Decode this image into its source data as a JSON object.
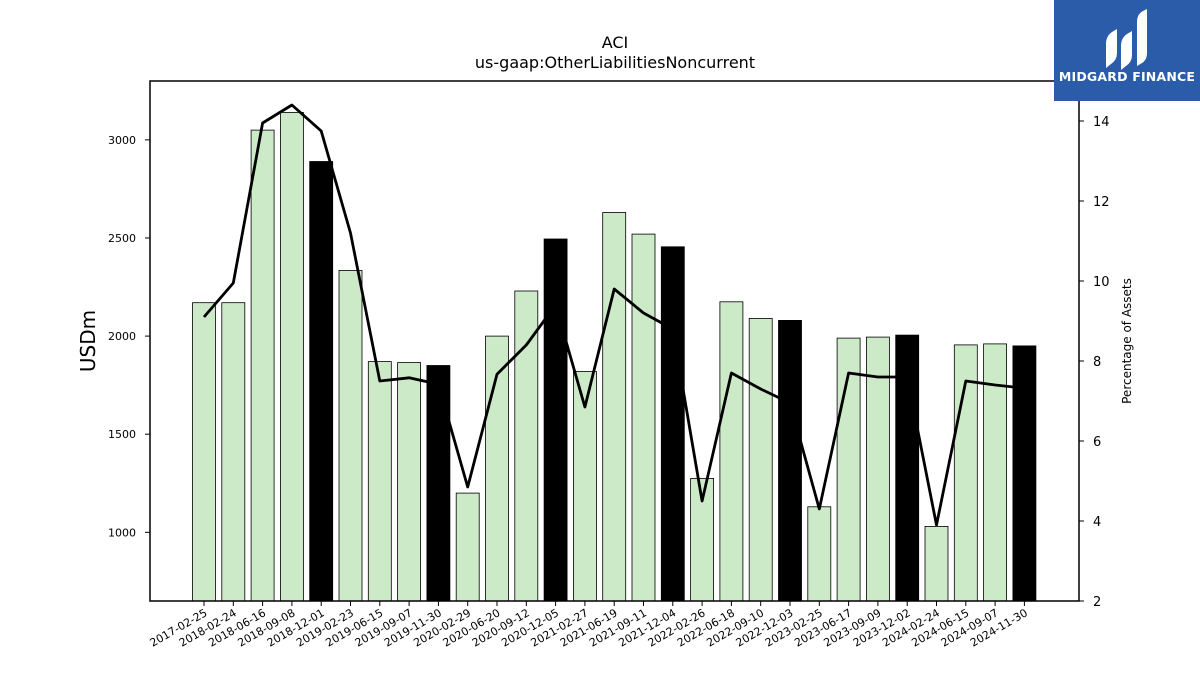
{
  "logo": {
    "text": "MIDGARD FINANCE",
    "background": "#2a5caa"
  },
  "chart_data": {
    "type": "bar",
    "title": "ACI",
    "subtitle": "us-gaap:OtherLiabilitiesNoncurrent",
    "ylabel": "USDm",
    "y2label": "Percentage of Assets",
    "ylim": [
      650,
      3300
    ],
    "y2lim": [
      2,
      15
    ],
    "yticks": [
      1000,
      1500,
      2000,
      2500,
      3000
    ],
    "y2ticks": [
      2,
      4,
      6,
      8,
      10,
      12,
      14
    ],
    "colors": {
      "bar": "#cdeac8",
      "bar_highlight": "#000000",
      "line": "#000000"
    },
    "categories": [
      "2017-02-25",
      "2018-02-24",
      "2018-06-16",
      "2018-09-08",
      "2018-12-01",
      "2019-02-23",
      "2019-06-15",
      "2019-09-07",
      "2019-11-30",
      "2020-02-29",
      "2020-06-20",
      "2020-09-12",
      "2020-12-05",
      "2021-02-27",
      "2021-06-19",
      "2021-09-11",
      "2021-12-04",
      "2022-02-26",
      "2022-06-18",
      "2022-09-10",
      "2022-12-03",
      "2023-02-25",
      "2023-06-17",
      "2023-09-09",
      "2023-12-02",
      "2024-02-24",
      "2024-06-15",
      "2024-09-07",
      "2024-11-30"
    ],
    "series": [
      {
        "type": "bar",
        "values": [
          2170,
          2170,
          3050,
          3140,
          2890,
          2335,
          1870,
          1865,
          1850,
          1200,
          2000,
          2230,
          2495,
          1820,
          2630,
          2520,
          2455,
          1275,
          2175,
          2090,
          2080,
          1130,
          1990,
          1995,
          2005,
          1030,
          1955,
          1960,
          1950
        ],
        "highlight": [
          false,
          false,
          false,
          false,
          true,
          false,
          false,
          false,
          true,
          false,
          false,
          false,
          true,
          false,
          false,
          false,
          true,
          false,
          false,
          false,
          true,
          false,
          false,
          false,
          true,
          false,
          false,
          false,
          true
        ]
      },
      {
        "type": "line",
        "axis": "right",
        "values": [
          9.1,
          9.95,
          13.95,
          14.4,
          13.75,
          11.2,
          7.5,
          7.58,
          7.42,
          4.85,
          7.67,
          8.4,
          9.4,
          6.85,
          9.8,
          9.2,
          8.8,
          4.5,
          7.7,
          7.3,
          6.95,
          4.3,
          7.7,
          7.6,
          7.6,
          3.9,
          7.5,
          7.4,
          7.32
        ]
      }
    ]
  }
}
